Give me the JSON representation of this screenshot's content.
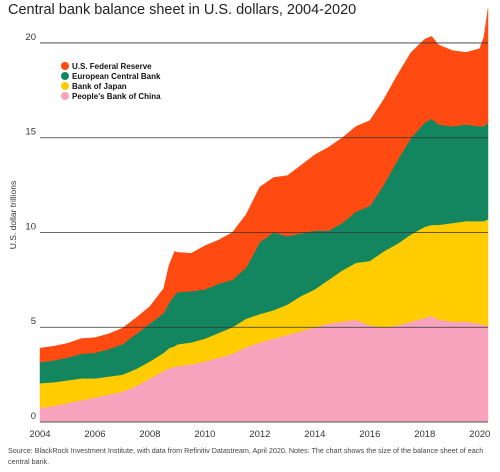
{
  "title": "Central bank balance sheet in U.S. dollars, 2004-2020",
  "source_note": "Source: BlackRock Investment Institute, with data from Refinitiv Datastream, April 2020. Notes: The chart shows the size of the balance sheet of each central bank.",
  "chart_data": {
    "type": "area",
    "stacked": true,
    "title": "Central bank balance sheet in U.S. dollars, 2004-2020",
    "xlabel": "",
    "ylabel": "U.S. dollar trillions",
    "xlim": [
      2004,
      2020.3
    ],
    "ylim": [
      0,
      21
    ],
    "x_ticks": [
      "2004",
      "2006",
      "2008",
      "2010",
      "2012",
      "2014",
      "2016",
      "2018",
      "2020"
    ],
    "y_ticks": [
      "0",
      "5",
      "10",
      "15",
      "20"
    ],
    "grid": "horizontal",
    "legend_position": "top-left",
    "x": [
      2004.0,
      2004.5,
      2005.0,
      2005.5,
      2006.0,
      2006.5,
      2007.0,
      2007.5,
      2008.0,
      2008.5,
      2008.7,
      2008.9,
      2009.0,
      2009.5,
      2010.0,
      2010.5,
      2011.0,
      2011.5,
      2012.0,
      2012.5,
      2013.0,
      2013.5,
      2014.0,
      2014.5,
      2015.0,
      2015.5,
      2016.0,
      2016.5,
      2017.0,
      2017.5,
      2018.0,
      2018.25,
      2018.5,
      2019.0,
      2019.5,
      2020.0,
      2020.15,
      2020.3
    ],
    "series": [
      {
        "name": "People's Bank of China",
        "color": "#f7a3bd",
        "values": [
          0.75,
          0.85,
          1.0,
          1.15,
          1.3,
          1.45,
          1.6,
          1.9,
          2.3,
          2.7,
          2.85,
          2.9,
          2.95,
          3.05,
          3.2,
          3.4,
          3.6,
          3.95,
          4.2,
          4.4,
          4.6,
          4.8,
          5.0,
          5.2,
          5.3,
          5.4,
          5.1,
          5.0,
          5.1,
          5.3,
          5.5,
          5.6,
          5.4,
          5.3,
          5.3,
          5.2,
          5.1,
          5.1
        ]
      },
      {
        "name": "Bank of Japan",
        "color": "#ffcc00",
        "values": [
          1.3,
          1.25,
          1.2,
          1.15,
          1.0,
          0.95,
          0.9,
          0.9,
          0.9,
          0.95,
          1.05,
          1.1,
          1.15,
          1.15,
          1.2,
          1.3,
          1.4,
          1.5,
          1.5,
          1.5,
          1.6,
          1.85,
          2.0,
          2.3,
          2.7,
          3.0,
          3.4,
          4.0,
          4.3,
          4.6,
          4.8,
          4.8,
          5.0,
          5.2,
          5.3,
          5.4,
          5.5,
          5.6
        ]
      },
      {
        "name": "European Central Bank",
        "color": "#13865f",
        "values": [
          1.1,
          1.15,
          1.2,
          1.3,
          1.35,
          1.45,
          1.6,
          1.85,
          2.0,
          2.1,
          2.4,
          2.7,
          2.75,
          2.7,
          2.6,
          2.6,
          2.5,
          2.7,
          3.8,
          4.1,
          3.6,
          3.3,
          3.1,
          2.6,
          2.5,
          2.7,
          2.9,
          3.5,
          4.4,
          5.1,
          5.5,
          5.6,
          5.3,
          5.1,
          5.1,
          5.0,
          5.0,
          5.1
        ]
      },
      {
        "name": "U.S. Federal Reserve",
        "color": "#ff4b12",
        "values": [
          0.75,
          0.75,
          0.75,
          0.8,
          0.8,
          0.8,
          0.85,
          0.85,
          0.9,
          1.3,
          2.0,
          2.3,
          2.1,
          2.0,
          2.3,
          2.3,
          2.5,
          2.8,
          2.9,
          2.9,
          3.2,
          3.6,
          4.0,
          4.4,
          4.5,
          4.5,
          4.5,
          4.5,
          4.5,
          4.5,
          4.4,
          4.35,
          4.2,
          4.0,
          3.8,
          4.1,
          4.7,
          6.0
        ]
      }
    ]
  }
}
